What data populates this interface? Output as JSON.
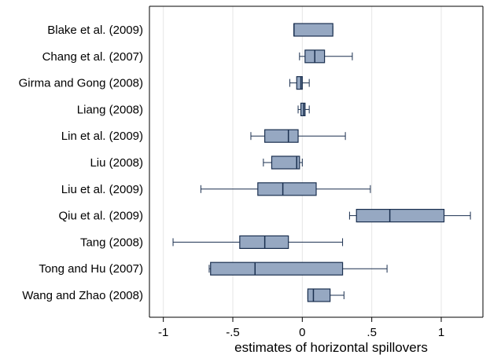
{
  "chart_data": {
    "type": "boxplot",
    "orientation": "horizontal",
    "xlabel": "estimates of horizontal spillovers",
    "xlim": [
      -1.1,
      1.3
    ],
    "xticks": [
      {
        "value": -1,
        "label": "-1"
      },
      {
        "value": -0.5,
        "label": "-.5"
      },
      {
        "value": 0,
        "label": "0"
      },
      {
        "value": 0.5,
        "label": ".5"
      },
      {
        "value": 1,
        "label": "1"
      }
    ],
    "grid": true,
    "colors": {
      "box_fill": "#96a8c2",
      "box_stroke": "#1a2f4f",
      "grid": "#e6e6e6"
    },
    "studies": [
      {
        "label": "Blake et al. (2009)",
        "whisker_low": -0.06,
        "q1": -0.06,
        "median": -0.06,
        "q3": 0.22,
        "whisker_high": 0.22
      },
      {
        "label": "Chang et al. (2007)",
        "whisker_low": -0.02,
        "q1": 0.02,
        "median": 0.09,
        "q3": 0.16,
        "whisker_high": 0.36
      },
      {
        "label": "Girma and Gong (2008)",
        "whisker_low": -0.09,
        "q1": -0.04,
        "median": -0.01,
        "q3": 0.0,
        "whisker_high": 0.05
      },
      {
        "label": "Liang (2008)",
        "whisker_low": -0.03,
        "q1": -0.01,
        "median": 0.01,
        "q3": 0.02,
        "whisker_high": 0.05
      },
      {
        "label": "Lin et al. (2009)",
        "whisker_low": -0.37,
        "q1": -0.27,
        "median": -0.1,
        "q3": -0.03,
        "whisker_high": 0.31
      },
      {
        "label": "Liu (2008)",
        "whisker_low": -0.28,
        "q1": -0.22,
        "median": -0.04,
        "q3": -0.02,
        "whisker_high": 0.0
      },
      {
        "label": "Liu et al. (2009)",
        "whisker_low": -0.73,
        "q1": -0.32,
        "median": -0.14,
        "q3": 0.1,
        "whisker_high": 0.49
      },
      {
        "label": "Qiu et al. (2009)",
        "whisker_low": 0.34,
        "q1": 0.39,
        "median": 0.63,
        "q3": 1.02,
        "whisker_high": 1.21
      },
      {
        "label": "Tang (2008)",
        "whisker_low": -0.93,
        "q1": -0.45,
        "median": -0.27,
        "q3": -0.1,
        "whisker_high": 0.29
      },
      {
        "label": "Tong and Hu (2007)",
        "whisker_low": -0.67,
        "q1": -0.66,
        "median": -0.34,
        "q3": 0.29,
        "whisker_high": 0.61
      },
      {
        "label": "Wang and Zhao (2008)",
        "whisker_low": 0.04,
        "q1": 0.04,
        "median": 0.08,
        "q3": 0.2,
        "whisker_high": 0.3
      }
    ]
  }
}
